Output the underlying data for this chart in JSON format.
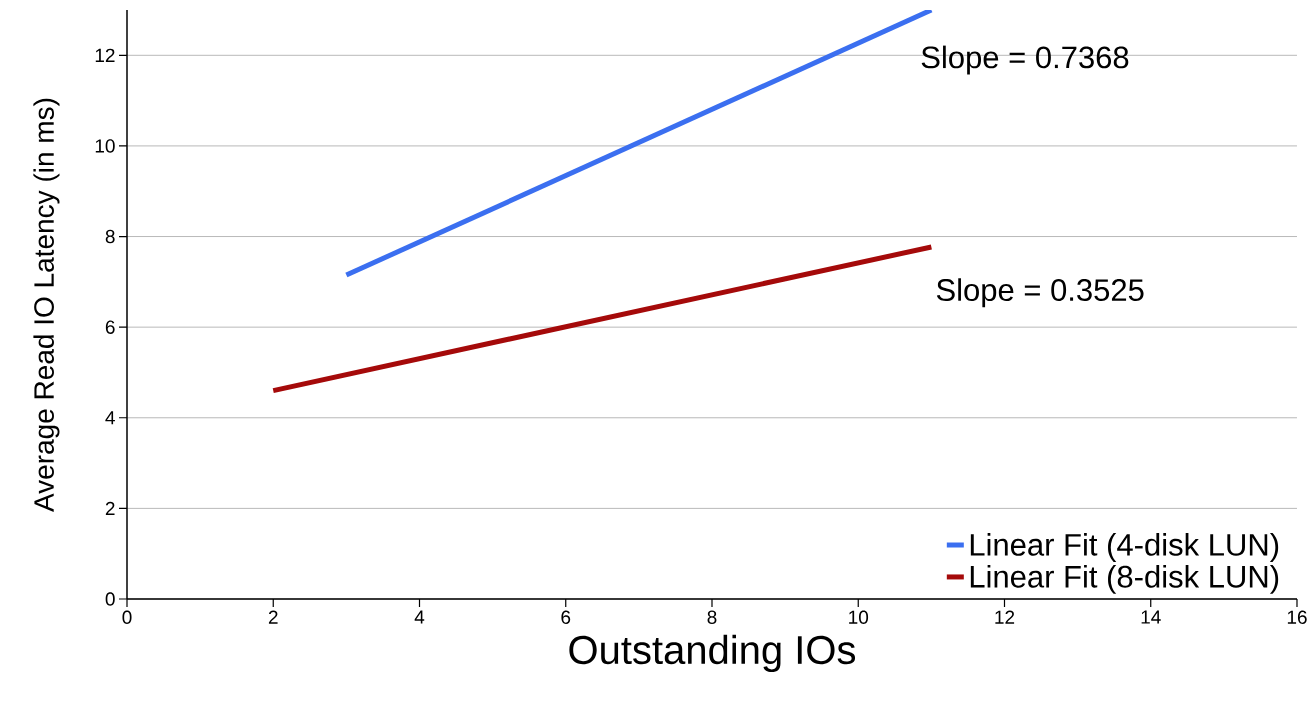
{
  "chart_data": {
    "type": "line",
    "xlabel": "Outstanding IOs",
    "ylabel": "Average Read IO Latency (in ms)",
    "series": [
      {
        "name": "Linear Fit (4-disk LUN)",
        "color": "#3b6ff0",
        "x": [
          3,
          11
        ],
        "values": [
          7.15,
          13.0
        ]
      },
      {
        "name": "Linear Fit (8-disk LUN)",
        "color": "#a50a0a",
        "x": [
          2,
          11
        ],
        "values": [
          4.6,
          7.77
        ]
      }
    ],
    "annotations": [
      "Slope = 0.7368",
      "Slope = 0.3525"
    ],
    "xlim": [
      0,
      16
    ],
    "ylim": [
      0,
      13
    ],
    "xticks": [
      0,
      2,
      4,
      6,
      8,
      10,
      12,
      14,
      16
    ],
    "yticks": [
      0,
      2,
      4,
      6,
      8,
      10,
      12
    ],
    "grid": "y",
    "legend": "bottom right",
    "marker": "none",
    "line_style": "solid"
  }
}
